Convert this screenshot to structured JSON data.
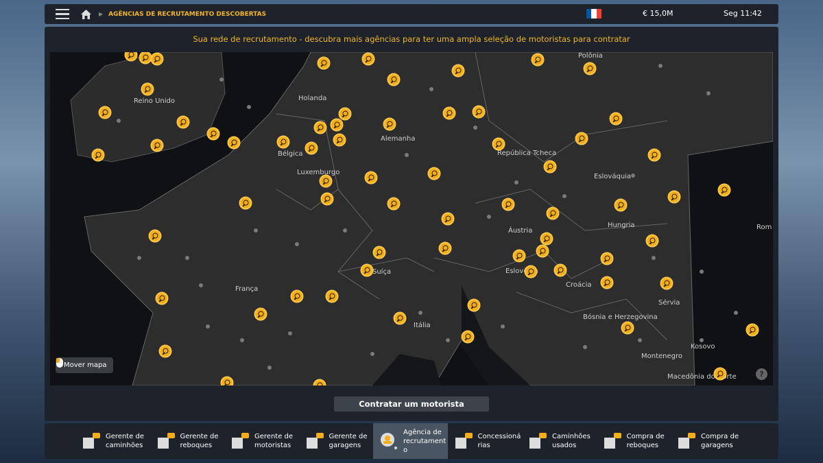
{
  "header": {
    "breadcrumb": "AGÊNCIAS DE RECRUTAMENTO DESCOBERTAS",
    "money": "€ 15,0M",
    "time": "Seg 11:42",
    "flag_colors": [
      "#0055a4",
      "#ffffff",
      "#ef4135"
    ]
  },
  "main": {
    "subtitle": "Sua rede de recrutamento - descubra mais agências para ter uma ampla seleção de motoristas para contratar",
    "move_map": "Mover mapa",
    "help": "?",
    "hire_button": "Contratar um motorista"
  },
  "map": {
    "countries": [
      "Reino Unido",
      "Holanda",
      "Bélgica",
      "Luxemburgo",
      "Alemanha",
      "Polônia",
      "República Tcheca",
      "Eslováquia",
      "Áustria",
      "Hungria",
      "França",
      "Suíça",
      "Itália",
      "Eslovênia",
      "Croácia",
      "Bósnia e Herzegovina",
      "Sérvia",
      "Montenegro",
      "Kosovo",
      "Macedônia do Norte",
      "Rom"
    ],
    "marker_color": "#f4ae1a"
  },
  "nav": [
    {
      "label": "Gerente de caminhões",
      "icon": "truck-gear-icon"
    },
    {
      "label": "Gerente de reboques",
      "icon": "trailer-gear-icon"
    },
    {
      "label": "Gerente de motoristas",
      "icon": "driver-gear-icon"
    },
    {
      "label": "Gerente de garagens",
      "icon": "garage-gear-icon"
    },
    {
      "label": "Agência de recrutamento",
      "icon": "recruitment-icon",
      "active": true
    },
    {
      "label": "Concessionárias",
      "icon": "truck-card-icon"
    },
    {
      "label": "Caminhões usados",
      "icon": "truck-tag-icon"
    },
    {
      "label": "Compra de reboques",
      "icon": "trailer-card-icon"
    },
    {
      "label": "Compra de garagens",
      "icon": "garage-card-icon"
    }
  ]
}
